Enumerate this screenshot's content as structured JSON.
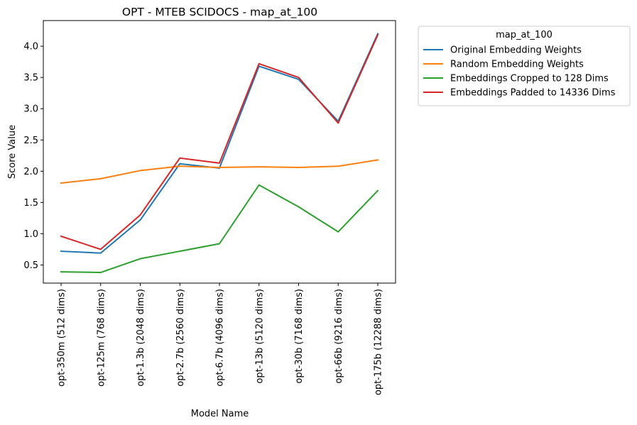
{
  "chart_data": {
    "type": "line",
    "title": "OPT - MTEB SCIDOCS - map_at_100",
    "xlabel": "Model Name",
    "ylabel": "Score Value",
    "categories": [
      "opt-350m (512 dims)",
      "opt-125m (768 dims)",
      "opt-1.3b (2048 dims)",
      "opt-2.7b (2560 dims)",
      "opt-6.7b (4096 dims)",
      "opt-13b (5120 dims)",
      "opt-30b (7168 dims)",
      "opt-66b (9216 dims)",
      "opt-175b (12288 dims)"
    ],
    "ylim": [
      0.21,
      4.41
    ],
    "yticks": [
      0.5,
      1.0,
      1.5,
      2.0,
      2.5,
      3.0,
      3.5,
      4.0
    ],
    "ytick_labels": [
      "0.5",
      "1.0",
      "1.5",
      "2.0",
      "2.5",
      "3.0",
      "3.5",
      "4.0"
    ],
    "grid": false,
    "legend": {
      "title": "map_at_100",
      "placement": "outside-upper-right"
    },
    "series": [
      {
        "name": "Original Embedding Weights",
        "color": "#1f77b4",
        "values": [
          0.72,
          0.69,
          1.22,
          2.12,
          2.05,
          3.68,
          3.47,
          2.8,
          4.2
        ]
      },
      {
        "name": "Random Embedding Weights",
        "color": "#ff7f0e",
        "values": [
          1.81,
          1.88,
          2.01,
          2.08,
          2.06,
          2.07,
          2.06,
          2.08,
          2.18
        ]
      },
      {
        "name": "Embeddings Cropped to 128 Dims",
        "color": "#2ca02c",
        "values": [
          0.39,
          0.38,
          0.6,
          0.72,
          0.84,
          1.78,
          1.43,
          1.03,
          1.69
        ]
      },
      {
        "name": "Embeddings Padded to 14336 Dims",
        "color": "#d62728",
        "values": [
          0.96,
          0.75,
          1.3,
          2.21,
          2.13,
          3.72,
          3.5,
          2.77,
          4.18
        ]
      }
    ]
  }
}
